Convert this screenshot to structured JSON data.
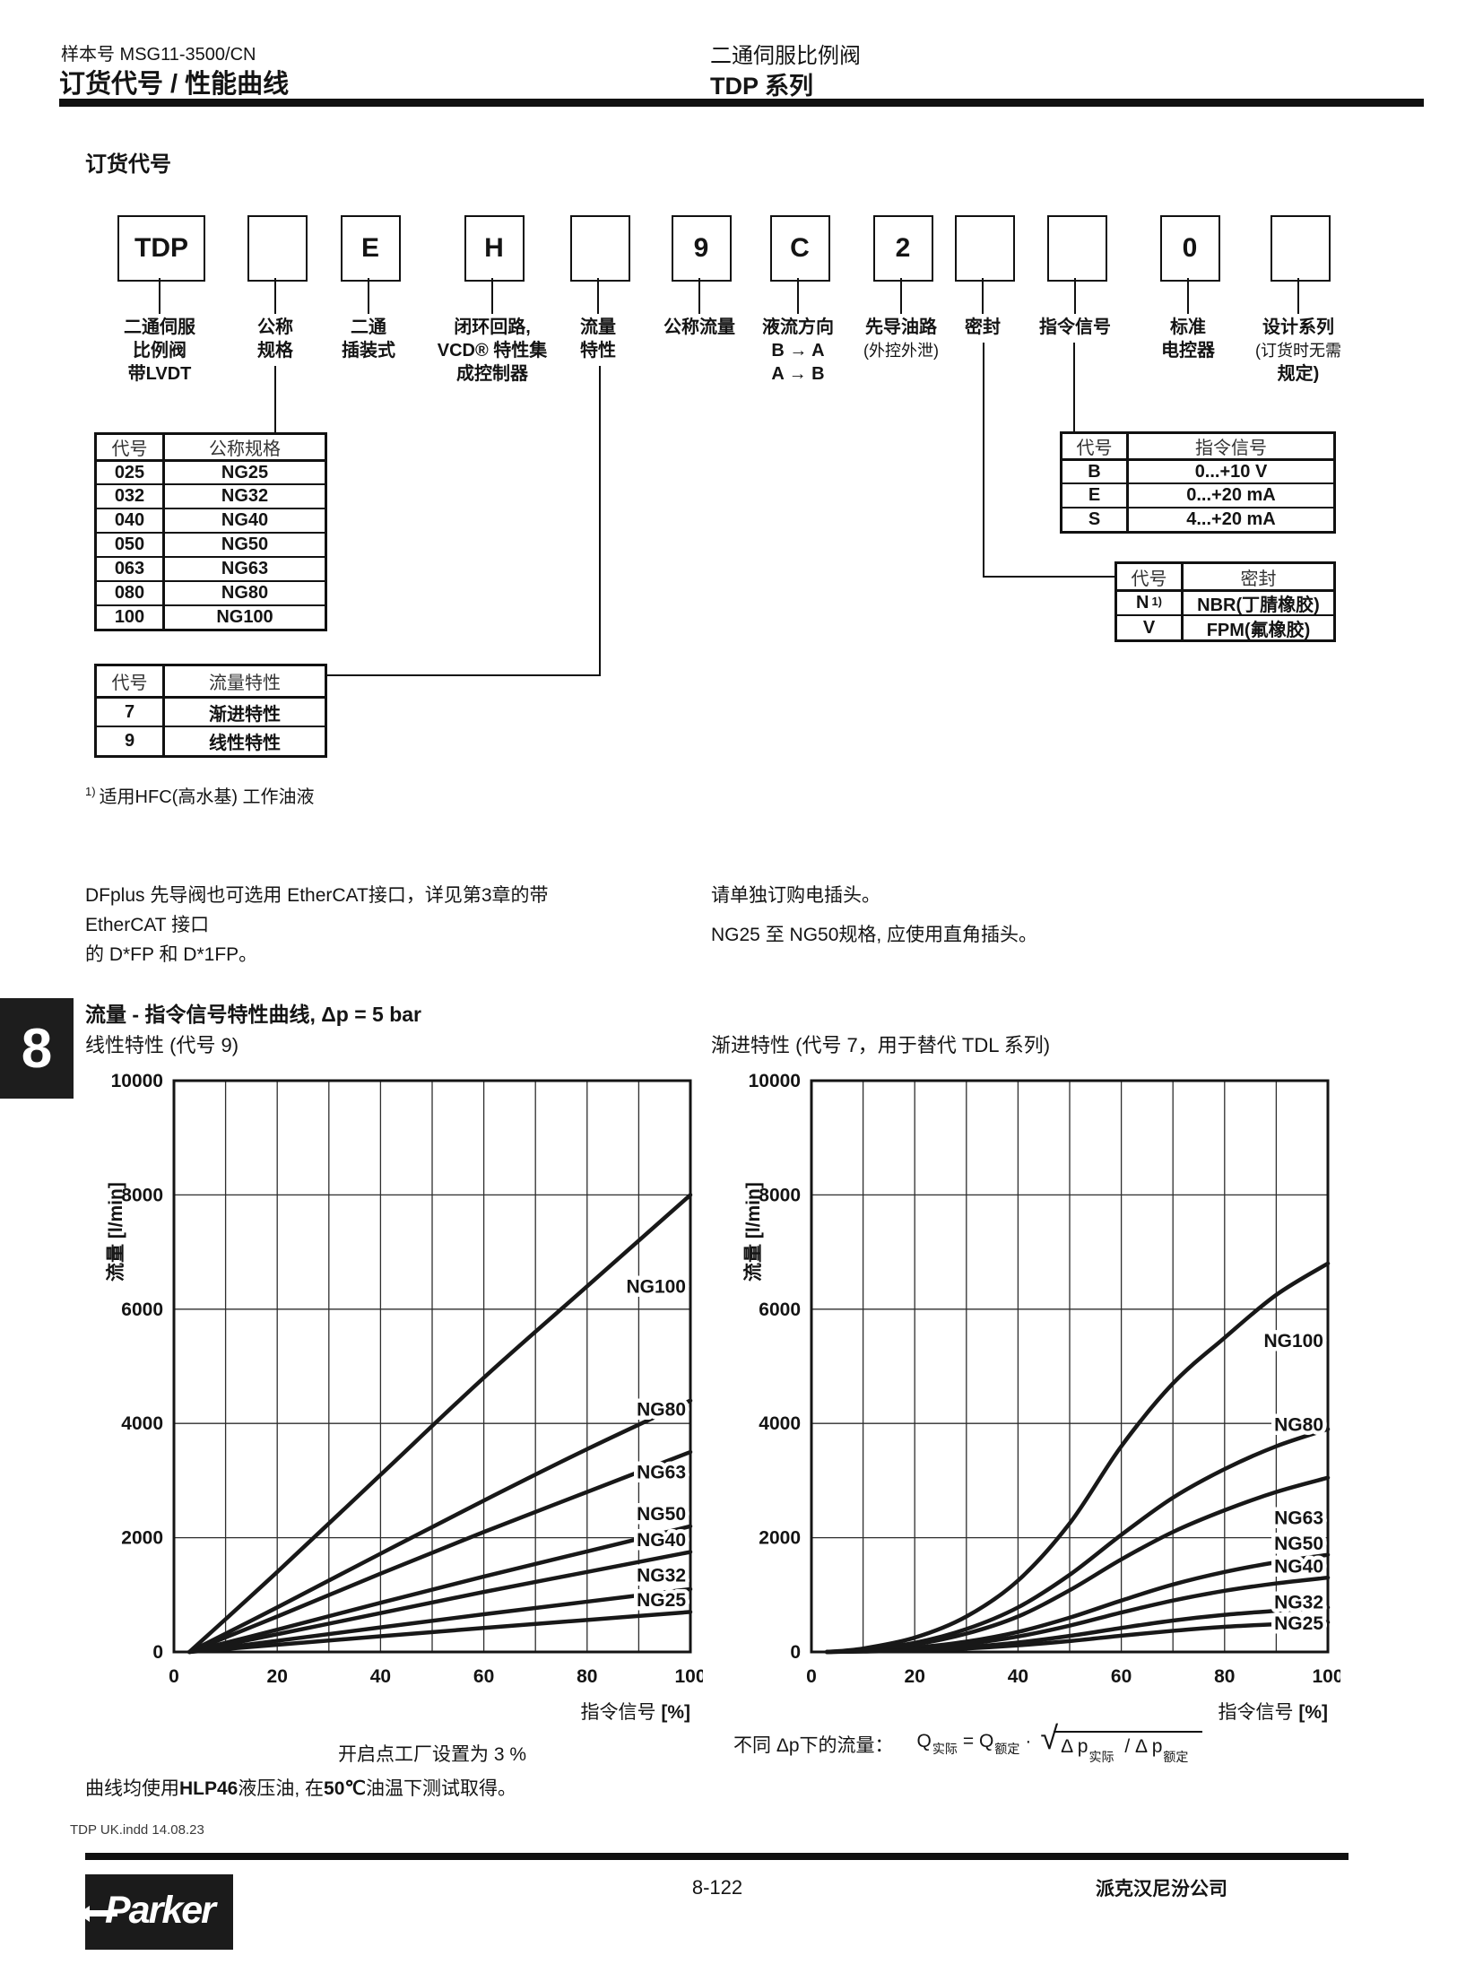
{
  "header": {
    "doc_number": "样本号 MSG11-3500/CN",
    "page_title": "订货代号 / 性能曲线",
    "product_title": "二通伺服比例阀",
    "product_series": "TDP 系列"
  },
  "side_tab": "8",
  "ordering": {
    "heading": "订货代号",
    "boxes": [
      {
        "code": "TDP",
        "label_lines": [
          "二通伺服",
          "比例阀",
          "带LVDT"
        ]
      },
      {
        "code": "",
        "label_lines": [
          "公称",
          "规格"
        ]
      },
      {
        "code": "E",
        "label_lines": [
          "二通",
          "插装式"
        ]
      },
      {
        "code": "H",
        "label_lines": [
          "闭环回路,",
          "VCD® 特性集",
          "成控制器"
        ]
      },
      {
        "code": "",
        "label_lines": [
          "流量",
          "特性"
        ]
      },
      {
        "code": "9",
        "label_lines": [
          "公称流量"
        ]
      },
      {
        "code": "C",
        "label_lines": [
          "液流方向",
          "B → A",
          "A → B"
        ]
      },
      {
        "code": "2",
        "label_lines": [
          "先导油路",
          "(外控外泄)"
        ]
      },
      {
        "code": "",
        "label_lines": [
          "密封"
        ]
      },
      {
        "code": "",
        "label_lines": [
          "指令信号"
        ]
      },
      {
        "code": "0",
        "label_lines": [
          "标准",
          "电控器"
        ]
      },
      {
        "code": "",
        "label_lines": [
          "设计系列",
          "(订货时无需",
          "规定)"
        ]
      }
    ],
    "size_table": {
      "headers": [
        "代号",
        "公称规格"
      ],
      "rows": [
        [
          "025",
          "NG25"
        ],
        [
          "032",
          "NG32"
        ],
        [
          "040",
          "NG40"
        ],
        [
          "050",
          "NG50"
        ],
        [
          "063",
          "NG63"
        ],
        [
          "080",
          "NG80"
        ],
        [
          "100",
          "NG100"
        ]
      ]
    },
    "command_table": {
      "headers": [
        "代号",
        "指令信号"
      ],
      "rows": [
        [
          "B",
          "0...+10 V"
        ],
        [
          "E",
          "0...+20 mA"
        ],
        [
          "S",
          "4...+20 mA"
        ]
      ]
    },
    "seal_table": {
      "headers": [
        "代号",
        "密封"
      ],
      "rows": [
        [
          "N",
          "NBR(丁腈橡胶)",
          "1)"
        ],
        [
          "V",
          "FPM(氟橡胶)"
        ]
      ]
    },
    "flow_table": {
      "headers": [
        "代号",
        "流量特性"
      ],
      "rows": [
        [
          "7",
          "渐进特性"
        ],
        [
          "9",
          "线性特性"
        ]
      ]
    },
    "footnote_sup": "1)",
    "footnote_text": "适用HFC(高水基) 工作油液"
  },
  "notes": {
    "left_line1": "DFplus 先导阀也可选用 EtherCAT接口，详见第3章的带 EtherCAT 接口",
    "left_line2": "的 D*FP 和 D*1FP。",
    "right_line1": "请单独订购电插头。",
    "right_line2": "NG25 至 NG50规格, 应使用直角插头。"
  },
  "charts_section": {
    "title": "流量 - 指令信号特性曲线, Δp = 5 bar",
    "open_point_note": "开启点工厂设置为 3 %",
    "formula_label": "不同 Δp下的流量：",
    "formula": {
      "q": "Q",
      "sub_actual": "实际",
      "eq": "= Q",
      "sub_rated": "额定",
      "dot": "·",
      "dp1": "Δ p",
      "slash": "/",
      "dp2": "Δ p"
    },
    "test_note": {
      "p1": "曲线均使用",
      "b1": "HLP46",
      "p2": "液压油, 在",
      "b2": "50℃",
      "p3": "油温下测试取得。"
    }
  },
  "chart_data": [
    {
      "type": "line",
      "title": "线性特性 (代号 9)",
      "xlabel": "指令信号",
      "xlabel_unit": "[%]",
      "ylabel": "流量 [l/min]",
      "xlim": [
        0,
        100
      ],
      "ylim": [
        0,
        10000
      ],
      "x_ticks": [
        0,
        20,
        40,
        60,
        80,
        100
      ],
      "y_ticks": [
        0,
        2000,
        4000,
        6000,
        8000,
        10000
      ],
      "x_grid_step": 10,
      "series": [
        {
          "name": "NG100",
          "points": [
            [
              3,
              0
            ],
            [
              20,
              1400
            ],
            [
              40,
              3100
            ],
            [
              60,
              4800
            ],
            [
              80,
              6400
            ],
            [
              100,
              8000
            ]
          ],
          "label_y": 6400
        },
        {
          "name": "NG80",
          "points": [
            [
              3,
              0
            ],
            [
              20,
              780
            ],
            [
              40,
              1720
            ],
            [
              60,
              2650
            ],
            [
              80,
              3550
            ],
            [
              100,
              4400
            ]
          ],
          "label_y": 4250
        },
        {
          "name": "NG63",
          "points": [
            [
              3,
              0
            ],
            [
              20,
              620
            ],
            [
              40,
              1370
            ],
            [
              60,
              2100
            ],
            [
              80,
              2800
            ],
            [
              100,
              3500
            ]
          ],
          "label_y": 3150
        },
        {
          "name": "NG50",
          "points": [
            [
              3,
              0
            ],
            [
              20,
              390
            ],
            [
              40,
              860
            ],
            [
              60,
              1320
            ],
            [
              80,
              1760
            ],
            [
              100,
              2200
            ]
          ],
          "label_y": 2420
        },
        {
          "name": "NG40",
          "points": [
            [
              3,
              0
            ],
            [
              20,
              310
            ],
            [
              40,
              680
            ],
            [
              60,
              1050
            ],
            [
              80,
              1400
            ],
            [
              100,
              1750
            ]
          ],
          "label_y": 1960
        },
        {
          "name": "NG32",
          "points": [
            [
              3,
              0
            ],
            [
              20,
              195
            ],
            [
              40,
              430
            ],
            [
              60,
              660
            ],
            [
              80,
              880
            ],
            [
              100,
              1100
            ]
          ],
          "label_y": 1340
        },
        {
          "name": "NG25",
          "points": [
            [
              3,
              0
            ],
            [
              20,
              125
            ],
            [
              40,
              275
            ],
            [
              60,
              420
            ],
            [
              80,
              560
            ],
            [
              100,
              700
            ]
          ],
          "label_y": 910
        }
      ]
    },
    {
      "type": "line",
      "title": "渐进特性 (代号 7，用于替代 TDL 系列)",
      "xlabel": "指令信号",
      "xlabel_unit": "[%]",
      "ylabel": "流量 [l/min]",
      "xlim": [
        0,
        100
      ],
      "ylim": [
        0,
        10000
      ],
      "x_ticks": [
        0,
        20,
        40,
        60,
        80,
        100
      ],
      "y_ticks": [
        0,
        2000,
        4000,
        6000,
        8000,
        10000
      ],
      "x_grid_step": 10,
      "series": [
        {
          "name": "NG100",
          "points": [
            [
              3,
              0
            ],
            [
              10,
              60
            ],
            [
              20,
              250
            ],
            [
              30,
              620
            ],
            [
              40,
              1250
            ],
            [
              50,
              2250
            ],
            [
              60,
              3600
            ],
            [
              70,
              4700
            ],
            [
              80,
              5500
            ],
            [
              90,
              6250
            ],
            [
              100,
              6800
            ]
          ],
          "label_y": 5450
        },
        {
          "name": "NG80",
          "points": [
            [
              3,
              0
            ],
            [
              10,
              40
            ],
            [
              20,
              160
            ],
            [
              30,
              400
            ],
            [
              40,
              780
            ],
            [
              50,
              1350
            ],
            [
              60,
              2050
            ],
            [
              70,
              2700
            ],
            [
              80,
              3200
            ],
            [
              90,
              3600
            ],
            [
              100,
              3900
            ]
          ],
          "label_y": 3980
        },
        {
          "name": "NG63",
          "points": [
            [
              3,
              0
            ],
            [
              10,
              30
            ],
            [
              20,
              130
            ],
            [
              30,
              320
            ],
            [
              40,
              620
            ],
            [
              50,
              1080
            ],
            [
              60,
              1620
            ],
            [
              70,
              2100
            ],
            [
              80,
              2480
            ],
            [
              90,
              2800
            ],
            [
              100,
              3050
            ]
          ],
          "label_y": 2350
        },
        {
          "name": "NG50",
          "points": [
            [
              3,
              0
            ],
            [
              10,
              20
            ],
            [
              20,
              75
            ],
            [
              30,
              180
            ],
            [
              40,
              350
            ],
            [
              50,
              600
            ],
            [
              60,
              900
            ],
            [
              70,
              1180
            ],
            [
              80,
              1400
            ],
            [
              90,
              1570
            ],
            [
              100,
              1700
            ]
          ],
          "label_y": 1900
        },
        {
          "name": "NG40",
          "points": [
            [
              3,
              0
            ],
            [
              10,
              15
            ],
            [
              20,
              60
            ],
            [
              30,
              140
            ],
            [
              40,
              270
            ],
            [
              50,
              460
            ],
            [
              60,
              690
            ],
            [
              70,
              900
            ],
            [
              80,
              1070
            ],
            [
              90,
              1200
            ],
            [
              100,
              1300
            ]
          ],
          "label_y": 1500
        },
        {
          "name": "NG32",
          "points": [
            [
              3,
              0
            ],
            [
              10,
              10
            ],
            [
              20,
              35
            ],
            [
              30,
              85
            ],
            [
              40,
              165
            ],
            [
              50,
              280
            ],
            [
              60,
              420
            ],
            [
              70,
              550
            ],
            [
              80,
              650
            ],
            [
              90,
              720
            ],
            [
              100,
              780
            ]
          ],
          "label_y": 870
        },
        {
          "name": "NG25",
          "points": [
            [
              3,
              0
            ],
            [
              10,
              8
            ],
            [
              20,
              25
            ],
            [
              30,
              60
            ],
            [
              40,
              115
            ],
            [
              50,
              190
            ],
            [
              60,
              285
            ],
            [
              70,
              370
            ],
            [
              80,
              440
            ],
            [
              90,
              485
            ],
            [
              100,
              520
            ]
          ],
          "label_y": 500
        }
      ]
    }
  ],
  "footer": {
    "file_note": "TDP UK.indd  14.08.23",
    "page_number": "8-122",
    "company": "派克汉尼汾公司",
    "logo_text": "Parker"
  }
}
